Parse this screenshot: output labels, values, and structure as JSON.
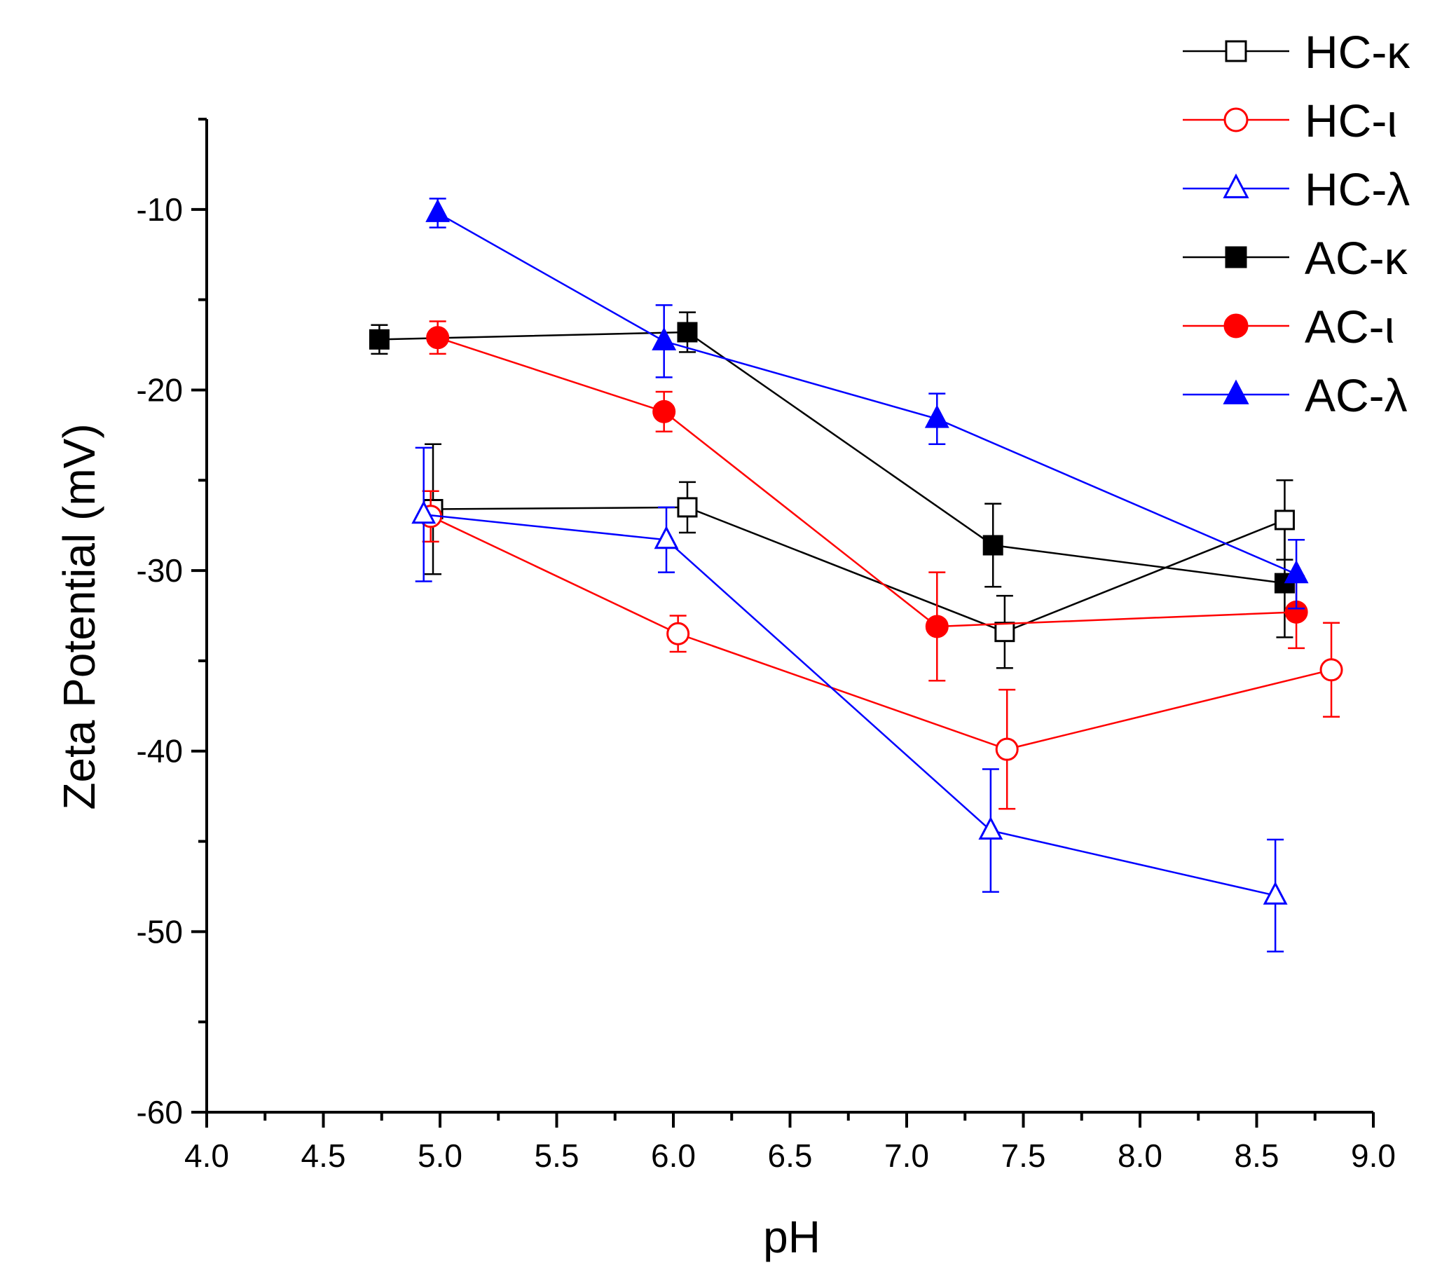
{
  "chart_data": {
    "type": "scatter",
    "title": "",
    "xlabel": "pH",
    "ylabel": "Zeta Potential (mV)",
    "xlim": [
      4.0,
      9.0
    ],
    "ylim": [
      -60,
      -5
    ],
    "x_ticks": [
      "4.0",
      "4.5",
      "5.0",
      "5.5",
      "6.0",
      "6.5",
      "7.0",
      "7.5",
      "8.0",
      "8.5",
      "9.0"
    ],
    "x_tick_values": [
      4.0,
      4.5,
      5.0,
      5.5,
      6.0,
      6.5,
      7.0,
      7.5,
      8.0,
      8.5,
      9.0
    ],
    "y_ticks": [
      "-10",
      "-20",
      "-30",
      "-40",
      "-50",
      "-60"
    ],
    "y_tick_values": [
      -10,
      -20,
      -30,
      -40,
      -50,
      -60
    ],
    "grid": false,
    "legend_position": "top-right",
    "series": [
      {
        "name": "HC-κ",
        "color": "#000000",
        "marker": "square",
        "filled": false,
        "x": [
          4.97,
          6.06,
          7.42,
          8.62
        ],
        "y": [
          -26.6,
          -26.5,
          -33.4,
          -27.2
        ],
        "yerr": [
          3.6,
          1.4,
          2.0,
          2.2
        ]
      },
      {
        "name": "HC-ι",
        "color": "#ff0000",
        "marker": "circle",
        "filled": false,
        "x": [
          4.96,
          6.02,
          7.43,
          8.82
        ],
        "y": [
          -27.0,
          -33.5,
          -39.9,
          -35.5
        ],
        "yerr": [
          1.4,
          1.0,
          3.3,
          2.6
        ]
      },
      {
        "name": "HC-λ",
        "color": "#0000ff",
        "marker": "triangle",
        "filled": false,
        "x": [
          4.93,
          5.97,
          7.36,
          8.58
        ],
        "y": [
          -26.9,
          -28.3,
          -44.4,
          -48.0
        ],
        "yerr": [
          3.7,
          1.8,
          3.4,
          3.1
        ]
      },
      {
        "name": "AC-κ",
        "color": "#000000",
        "marker": "square",
        "filled": true,
        "x": [
          4.74,
          6.06,
          7.37,
          8.62
        ],
        "y": [
          -17.2,
          -16.8,
          -28.6,
          -30.7
        ],
        "yerr": [
          0.8,
          1.1,
          2.3,
          3.0
        ]
      },
      {
        "name": "AC-ι",
        "color": "#ff0000",
        "marker": "circle",
        "filled": true,
        "x": [
          4.99,
          5.96,
          7.13,
          8.67
        ],
        "y": [
          -17.1,
          -21.2,
          -33.1,
          -32.3
        ],
        "yerr": [
          0.9,
          1.1,
          3.0,
          2.0
        ]
      },
      {
        "name": "AC-λ",
        "color": "#0000ff",
        "marker": "triangle",
        "filled": true,
        "x": [
          4.99,
          5.96,
          7.13,
          8.67
        ],
        "y": [
          -10.2,
          -17.3,
          -21.6,
          -30.2
        ],
        "yerr": [
          0.8,
          2.0,
          1.4,
          1.9
        ]
      }
    ]
  }
}
